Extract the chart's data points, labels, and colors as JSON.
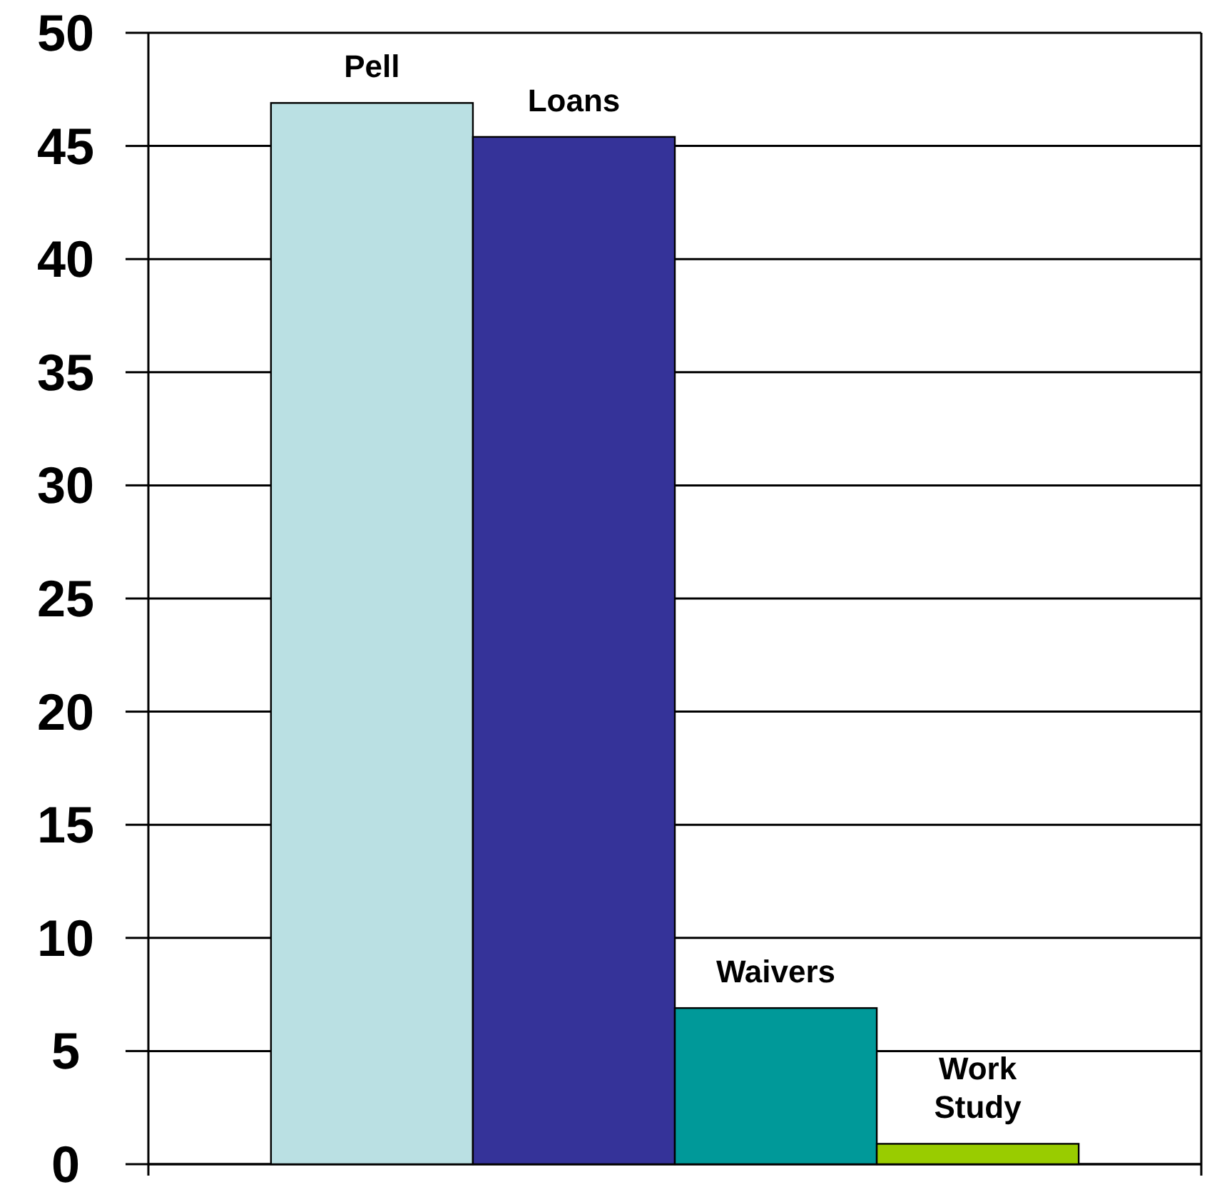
{
  "chart_data": {
    "type": "bar",
    "categories": [
      null
    ],
    "series": [
      {
        "name": "Pell",
        "color": "#bae0e3",
        "values": [
          46.9
        ]
      },
      {
        "name": "Loans",
        "color": "#353399",
        "values": [
          45.4
        ]
      },
      {
        "name": "Waivers",
        "color": "#009999",
        "values": [
          6.9
        ]
      },
      {
        "name": "Work Study",
        "color": "#99cc00",
        "values": [
          0.9
        ]
      }
    ],
    "ylim": [
      0,
      50
    ],
    "yticks": [
      0,
      5,
      10,
      15,
      20,
      25,
      30,
      35,
      40,
      45,
      50
    ],
    "grid": "y"
  }
}
